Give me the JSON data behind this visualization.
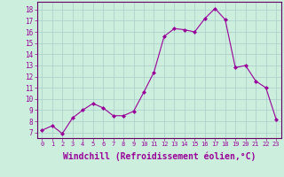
{
  "x": [
    0,
    1,
    2,
    3,
    4,
    5,
    6,
    7,
    8,
    9,
    10,
    11,
    12,
    13,
    14,
    15,
    16,
    17,
    18,
    19,
    20,
    21,
    22,
    23
  ],
  "y": [
    7.2,
    7.6,
    6.9,
    8.3,
    9.0,
    9.6,
    9.2,
    8.5,
    8.5,
    8.9,
    10.6,
    12.4,
    15.6,
    16.3,
    16.2,
    16.0,
    17.2,
    18.1,
    17.1,
    12.8,
    13.0,
    11.6,
    11.0,
    8.2
  ],
  "line_color": "#990099",
  "marker": "D",
  "marker_size": 2,
  "xlabel": "Windchill (Refroidissement éolien,°C)",
  "xlabel_fontsize": 7,
  "ylabel_ticks": [
    7,
    8,
    9,
    10,
    11,
    12,
    13,
    14,
    15,
    16,
    17,
    18
  ],
  "ylim": [
    6.5,
    18.7
  ],
  "xlim": [
    -0.5,
    23.5
  ],
  "bg_color": "#cceedd",
  "grid_color": "#aacccc",
  "tick_label_color": "#990099",
  "axis_color": "#660066",
  "figsize": [
    3.2,
    2.0
  ],
  "dpi": 100
}
